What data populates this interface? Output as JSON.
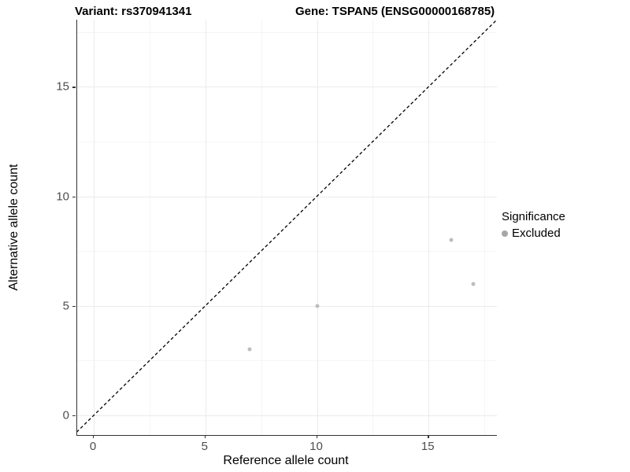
{
  "titles": {
    "variant": "Variant: rs370941341",
    "gene": "Gene: TSPAN5 (ENSG00000168785)"
  },
  "chart_data": {
    "type": "scatter",
    "title_left": "Variant: rs370941341",
    "title_right": "Gene: TSPAN5 (ENSG00000168785)",
    "xlabel": "Reference allele count",
    "ylabel": "Alternative allele count",
    "x_major_ticks": [
      0,
      5,
      10,
      15
    ],
    "y_major_ticks": [
      0,
      5,
      10,
      15
    ],
    "x_minor_gridlines": [
      2.5,
      7.5,
      12.5,
      17.5
    ],
    "y_minor_gridlines": [
      2.5,
      7.5,
      12.5,
      17.5
    ],
    "xlim": [
      -0.75,
      18.8
    ],
    "ylim": [
      -0.9,
      18.1
    ],
    "grid": true,
    "series": [
      {
        "name": "Excluded",
        "points": [
          {
            "x": 7,
            "y": 3
          },
          {
            "x": 10,
            "y": 5
          },
          {
            "x": 16,
            "y": 8
          },
          {
            "x": 17,
            "y": 6
          }
        ]
      }
    ],
    "reference_line": {
      "equation": "y = x",
      "style": "dashed",
      "color": "#000000"
    },
    "legend": {
      "title": "Significance",
      "position": "right",
      "entries": [
        {
          "label": "Excluded",
          "color": "#a6a6a6"
        }
      ]
    }
  },
  "colors": {
    "point": "#bdbdbd",
    "legend_key": "#a6a6a6",
    "grid_major": "#ebebeb",
    "grid_minor": "#f5f5f5",
    "axis_line": "#333333",
    "tick_text": "#4d4d4d"
  }
}
